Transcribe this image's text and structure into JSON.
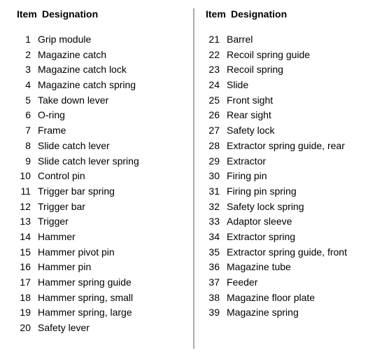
{
  "header": {
    "item": "Item",
    "designation": "Designation"
  },
  "left": [
    {
      "n": "1",
      "d": "Grip module"
    },
    {
      "n": "2",
      "d": "Magazine catch"
    },
    {
      "n": "3",
      "d": "Magazine catch lock"
    },
    {
      "n": "4",
      "d": "Magazine catch spring"
    },
    {
      "n": "5",
      "d": "Take down lever"
    },
    {
      "n": "6",
      "d": "O-ring"
    },
    {
      "n": "7",
      "d": "Frame"
    },
    {
      "n": "8",
      "d": "Slide catch lever"
    },
    {
      "n": "9",
      "d": "Slide catch lever spring"
    },
    {
      "n": "10",
      "d": "Control pin"
    },
    {
      "n": "11",
      "d": "Trigger bar spring"
    },
    {
      "n": "12",
      "d": "Trigger bar"
    },
    {
      "n": "13",
      "d": "Trigger"
    },
    {
      "n": "14",
      "d": "Hammer"
    },
    {
      "n": "15",
      "d": "Hammer pivot pin"
    },
    {
      "n": "16",
      "d": "Hammer pin"
    },
    {
      "n": "17",
      "d": "Hammer spring guide"
    },
    {
      "n": "18",
      "d": "Hammer spring, small"
    },
    {
      "n": "19",
      "d": "Hammer spring, large"
    },
    {
      "n": "20",
      "d": "Safety lever"
    }
  ],
  "right": [
    {
      "n": "21",
      "d": "Barrel"
    },
    {
      "n": "22",
      "d": "Recoil spring guide"
    },
    {
      "n": "23",
      "d": "Recoil spring"
    },
    {
      "n": "24",
      "d": "Slide"
    },
    {
      "n": "25",
      "d": "Front sight"
    },
    {
      "n": "26",
      "d": "Rear sight"
    },
    {
      "n": "27",
      "d": "Safety lock"
    },
    {
      "n": "28",
      "d": "Extractor spring guide, rear"
    },
    {
      "n": "29",
      "d": "Extractor"
    },
    {
      "n": "30",
      "d": "Firing pin"
    },
    {
      "n": "31",
      "d": "Firing pin spring"
    },
    {
      "n": "32",
      "d": "Safety lock spring"
    },
    {
      "n": "33",
      "d": "Adaptor sleeve"
    },
    {
      "n": "34",
      "d": "Extractor spring"
    },
    {
      "n": "35",
      "d": "Extractor spring guide, front"
    },
    {
      "n": "36",
      "d": "Magazine tube"
    },
    {
      "n": "37",
      "d": "Feeder"
    },
    {
      "n": "38",
      "d": "Magazine floor plate"
    },
    {
      "n": "39",
      "d": "Magazine spring"
    }
  ]
}
